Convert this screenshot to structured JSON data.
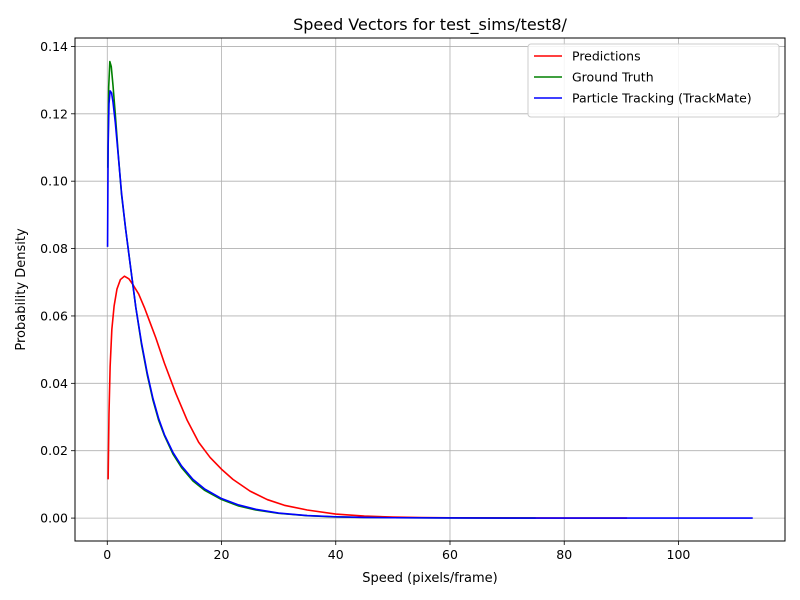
{
  "chart_data": {
    "type": "line",
    "title": "Speed Vectors for test_sims/test8/",
    "xlabel": "Speed (pixels/frame)",
    "ylabel": "Probability Density",
    "xlim": [
      -5.65,
      118.65
    ],
    "ylim": [
      -0.0068,
      0.1425
    ],
    "xticks": [
      0,
      20,
      40,
      60,
      80,
      100
    ],
    "xtick_labels": [
      "0",
      "20",
      "40",
      "60",
      "80",
      "100"
    ],
    "yticks": [
      0.0,
      0.02,
      0.04,
      0.06,
      0.08,
      0.1,
      0.12,
      0.14
    ],
    "ytick_labels": [
      "0.00",
      "0.02",
      "0.04",
      "0.06",
      "0.08",
      "0.10",
      "0.12",
      "0.14"
    ],
    "grid": true,
    "legend_position": "top-right",
    "series": [
      {
        "name": "Predictions",
        "color": "#ff0000",
        "x": [
          0.15,
          0.3,
          0.5,
          0.8,
          1.2,
          1.7,
          2.3,
          3.0,
          3.8,
          4.6,
          5.5,
          6.5,
          7.5,
          8.5,
          10,
          12,
          14,
          16,
          18,
          20,
          22,
          25,
          28,
          31,
          35,
          40,
          45,
          50,
          55,
          60,
          70,
          80,
          91
        ],
        "y": [
          0.0115,
          0.031,
          0.045,
          0.056,
          0.063,
          0.068,
          0.0708,
          0.0718,
          0.071,
          0.069,
          0.0665,
          0.0625,
          0.058,
          0.0535,
          0.046,
          0.037,
          0.029,
          0.0225,
          0.018,
          0.0145,
          0.0115,
          0.008,
          0.0055,
          0.0038,
          0.0024,
          0.0012,
          0.0006,
          0.0003,
          0.00015,
          0.0001,
          5e-05,
          2e-05,
          1e-05
        ]
      },
      {
        "name": "Ground Truth",
        "color": "#008000",
        "x": [
          0.1,
          0.25,
          0.45,
          0.7,
          1.0,
          1.4,
          1.9,
          2.5,
          3.2,
          4.0,
          5.0,
          6.0,
          7.0,
          8.0,
          9.0,
          10,
          11.5,
          13,
          15,
          17,
          20,
          23,
          26,
          30,
          35,
          40,
          45,
          50,
          60,
          75
        ],
        "y": [
          0.104,
          0.128,
          0.1355,
          0.134,
          0.1285,
          0.12,
          0.1085,
          0.096,
          0.086,
          0.0755,
          0.0625,
          0.0515,
          0.0425,
          0.035,
          0.029,
          0.0245,
          0.019,
          0.015,
          0.011,
          0.0083,
          0.0055,
          0.0036,
          0.0024,
          0.0014,
          0.0007,
          0.00035,
          0.0002,
          0.0001,
          3e-05,
          1e-05
        ]
      },
      {
        "name": "Particle Tracking (TrackMate)",
        "color": "#0000ff",
        "x": [
          0.05,
          0.15,
          0.3,
          0.5,
          0.75,
          1.0,
          1.4,
          1.9,
          2.5,
          3.2,
          4.0,
          5.0,
          6.0,
          7.0,
          8.0,
          9.0,
          10,
          11.5,
          13,
          15,
          17,
          20,
          23,
          26,
          30,
          35,
          40,
          45,
          50,
          60,
          75,
          90,
          113
        ],
        "y": [
          0.0805,
          0.11,
          0.123,
          0.1268,
          0.1262,
          0.1235,
          0.1175,
          0.108,
          0.0965,
          0.086,
          0.0755,
          0.0625,
          0.052,
          0.043,
          0.0355,
          0.0295,
          0.0248,
          0.0195,
          0.0155,
          0.0115,
          0.0087,
          0.0058,
          0.0039,
          0.0026,
          0.0015,
          0.00075,
          0.0004,
          0.0002,
          0.0001,
          4e-05,
          1e-05,
          5e-06,
          1e-06
        ]
      }
    ]
  }
}
